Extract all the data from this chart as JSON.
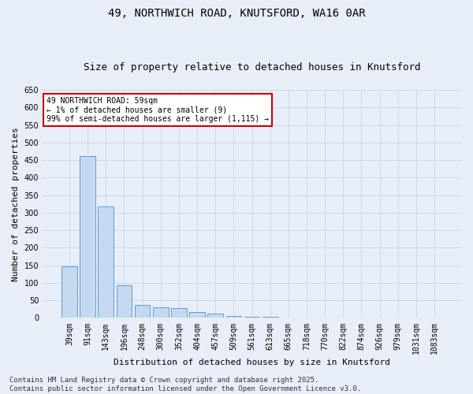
{
  "title": "49, NORTHWICH ROAD, KNUTSFORD, WA16 0AR",
  "subtitle": "Size of property relative to detached houses in Knutsford",
  "xlabel": "Distribution of detached houses by size in Knutsford",
  "ylabel": "Number of detached properties",
  "categories": [
    "39sqm",
    "91sqm",
    "143sqm",
    "196sqm",
    "248sqm",
    "300sqm",
    "352sqm",
    "404sqm",
    "457sqm",
    "509sqm",
    "561sqm",
    "613sqm",
    "665sqm",
    "718sqm",
    "770sqm",
    "822sqm",
    "874sqm",
    "926sqm",
    "979sqm",
    "1031sqm",
    "1083sqm"
  ],
  "values": [
    148,
    462,
    317,
    93,
    37,
    30,
    28,
    17,
    12,
    5,
    4,
    3,
    2,
    1,
    0,
    0,
    0,
    0,
    0,
    0,
    1
  ],
  "bar_color": "#c5d8ef",
  "bar_edge_color": "#5a9fd4",
  "annotation_box_text": "49 NORTHWICH ROAD: 59sqm\n← 1% of detached houses are smaller (9)\n99% of semi-detached houses are larger (1,115) →",
  "annotation_box_color": "#ffffff",
  "annotation_box_edge_color": "#cc0000",
  "ylim": [
    0,
    650
  ],
  "grid_color": "#c8d4e8",
  "background_color": "#e8eef8",
  "footer": "Contains HM Land Registry data © Crown copyright and database right 2025.\nContains public sector information licensed under the Open Government Licence v3.0.",
  "title_fontsize": 10,
  "subtitle_fontsize": 9,
  "xlabel_fontsize": 8,
  "ylabel_fontsize": 8,
  "tick_fontsize": 7,
  "footer_fontsize": 6.5,
  "ann_fontsize": 7
}
